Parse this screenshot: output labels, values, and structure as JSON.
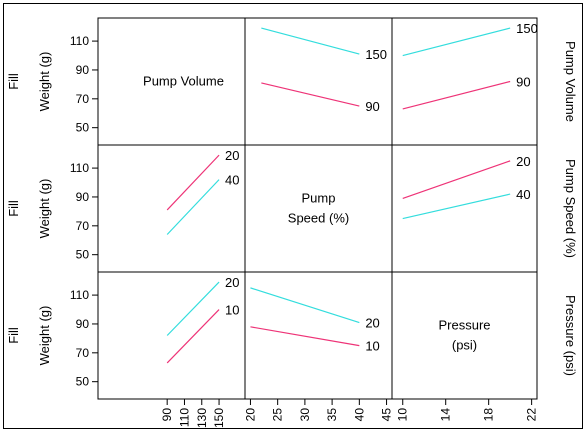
{
  "chart_data": {
    "type": "line",
    "colors": {
      "cyan": "#33dddd",
      "magenta": "#ee3377",
      "frame": "#000000"
    },
    "factors": [
      {
        "name": "Pump Volume",
        "label_lines": [
          "Pump Volume"
        ],
        "side_label": "Pump Volume",
        "range": [
          10,
          180
        ],
        "ticks": [
          "90",
          "110",
          "130",
          "150"
        ]
      },
      {
        "name": "Pump Speed (%)",
        "label_lines": [
          "Pump",
          "Speed (%)"
        ],
        "side_label": "Pump Speed (%)",
        "range": [
          19,
          46
        ],
        "ticks": [
          "20",
          "25",
          "30",
          "35",
          "40",
          "45"
        ]
      },
      {
        "name": "Pressure (psi)",
        "label_lines": [
          "Pressure",
          "(psi)"
        ],
        "side_label": "Pressure (psi)",
        "range": [
          9,
          22.5
        ],
        "ticks": [
          "10",
          "14",
          "18",
          "22"
        ]
      }
    ],
    "response": {
      "ylabel_lines": [
        "Fill",
        "Weight (g)"
      ],
      "ylim": [
        38,
        126
      ],
      "yticks": [
        "50",
        "70",
        "90",
        "110"
      ]
    },
    "panels": [
      {
        "row": 0,
        "col": 1,
        "series": [
          {
            "name": "150",
            "color": "cyan",
            "x": [
              22,
              40
            ],
            "y": [
              119,
              101
            ]
          },
          {
            "name": "90",
            "color": "magenta",
            "x": [
              22,
              40
            ],
            "y": [
              81,
              65
            ]
          }
        ]
      },
      {
        "row": 0,
        "col": 2,
        "series": [
          {
            "name": "150",
            "color": "cyan",
            "x": [
              10,
              20
            ],
            "y": [
              100,
              119
            ]
          },
          {
            "name": "90",
            "color": "magenta",
            "x": [
              10,
              20
            ],
            "y": [
              63,
              82
            ]
          }
        ]
      },
      {
        "row": 1,
        "col": 0,
        "series": [
          {
            "name": "20",
            "color": "magenta",
            "x": [
              90,
              150
            ],
            "y": [
              81,
              119
            ]
          },
          {
            "name": "40",
            "color": "cyan",
            "x": [
              90,
              150
            ],
            "y": [
              64,
              102
            ]
          }
        ]
      },
      {
        "row": 1,
        "col": 2,
        "series": [
          {
            "name": "20",
            "color": "magenta",
            "x": [
              10,
              20
            ],
            "y": [
              89,
              115
            ]
          },
          {
            "name": "40",
            "color": "cyan",
            "x": [
              10,
              20
            ],
            "y": [
              75,
              92
            ]
          }
        ]
      },
      {
        "row": 2,
        "col": 0,
        "series": [
          {
            "name": "20",
            "color": "cyan",
            "x": [
              90,
              150
            ],
            "y": [
              82,
              119
            ]
          },
          {
            "name": "10",
            "color": "magenta",
            "x": [
              90,
              150
            ],
            "y": [
              63,
              100
            ]
          }
        ]
      },
      {
        "row": 2,
        "col": 1,
        "series": [
          {
            "name": "20",
            "color": "cyan",
            "x": [
              20,
              40
            ],
            "y": [
              115,
              91
            ]
          },
          {
            "name": "10",
            "color": "magenta",
            "x": [
              20,
              40
            ],
            "y": [
              88,
              75
            ]
          }
        ]
      }
    ]
  }
}
